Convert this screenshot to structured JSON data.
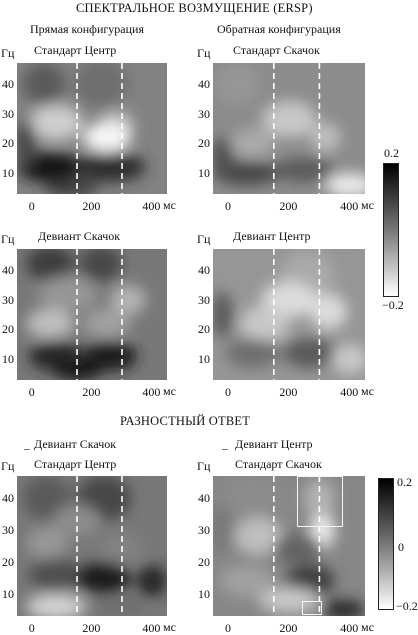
{
  "title": "СПЕКТРАЛЬНОЕ ВОЗМУЩЕНИЕ (ERSP)",
  "column_titles": {
    "left": "Прямая конфигурация",
    "right": "Обратная конфигурация"
  },
  "panels": [
    {
      "id": "p1",
      "label": "Стандарт Центр",
      "prefix": "",
      "label2": ""
    },
    {
      "id": "p2",
      "label": "Стандарт Скачок",
      "prefix": "",
      "label2": ""
    },
    {
      "id": "p3",
      "label": "Девиант Скачок",
      "prefix": "",
      "label2": ""
    },
    {
      "id": "p4",
      "label": "Девиант Центр",
      "prefix": "",
      "label2": ""
    },
    {
      "id": "p5",
      "label": "Девиант Скачок",
      "prefix": "_",
      "label2": "Стандарт Центр"
    },
    {
      "id": "p6",
      "label": "Девиант Центр",
      "prefix": "_",
      "label2": "Стандарт Скачок"
    }
  ],
  "section2_title": "РАЗНОСТНЫЙ ОТВЕТ",
  "axes": {
    "y_unit": "Гц",
    "x_unit": "мс",
    "y_ticks": [
      "40",
      "30",
      "20",
      "10"
    ],
    "x_ticks": [
      "0",
      "200",
      "400"
    ]
  },
  "colorbars": [
    {
      "max": "0.2",
      "mid": "",
      "min": "−0.2"
    },
    {
      "max": "0.2",
      "mid": "0",
      "min": "−0.2"
    }
  ],
  "chart_data": {
    "type": "heatmap",
    "x_range_ms": [
      -50,
      450
    ],
    "y_range_hz": [
      3,
      47
    ],
    "markers_ms": [
      150,
      300
    ],
    "colorscale": {
      "low": "#ffffff",
      "high": "#000000"
    },
    "range_ersp": [
      -0.2,
      0.2
    ],
    "range_difference": [
      -0.2,
      0.2
    ]
  }
}
